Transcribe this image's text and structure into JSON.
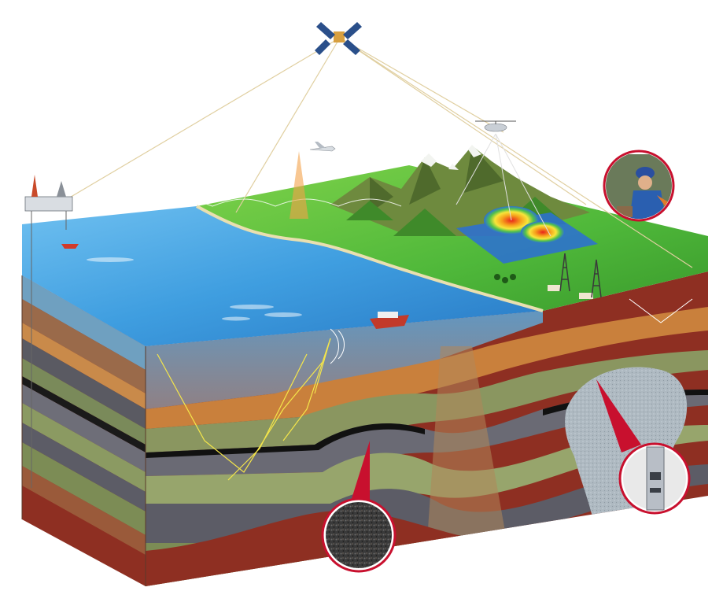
{
  "diagram": {
    "kind": "geological exploration block diagram",
    "text_labels": [],
    "elements": {
      "satellite": "satellite-icon",
      "survey_airplane": "airplane-icon",
      "survey_helicopter": "helicopter-icon",
      "offshore_rig": "oil-rig-icon",
      "seismic_ship": "seismic-vessel-icon",
      "support_boat": "boat-icon",
      "drilling_derricks": "derrick-icon",
      "geologist": "geologist-inset",
      "core_sample": "rock-core-inset",
      "logging_tool": "logging-tool-inset",
      "anomaly_map": "geophysical-anomaly-map"
    },
    "colors": {
      "sea": "#3f9ee0",
      "land": "#4fb83a",
      "mountain": "#7a8b4a",
      "snow": "#f2f4f0",
      "reservoir": "#a9c3d6",
      "oil_layer": "#1a1a1a",
      "deep_layer": "#8e2f22",
      "signal_line": "#e8d9a8",
      "seismic_ray": "#f5e64a",
      "inset_frame": "#c8102e"
    }
  }
}
